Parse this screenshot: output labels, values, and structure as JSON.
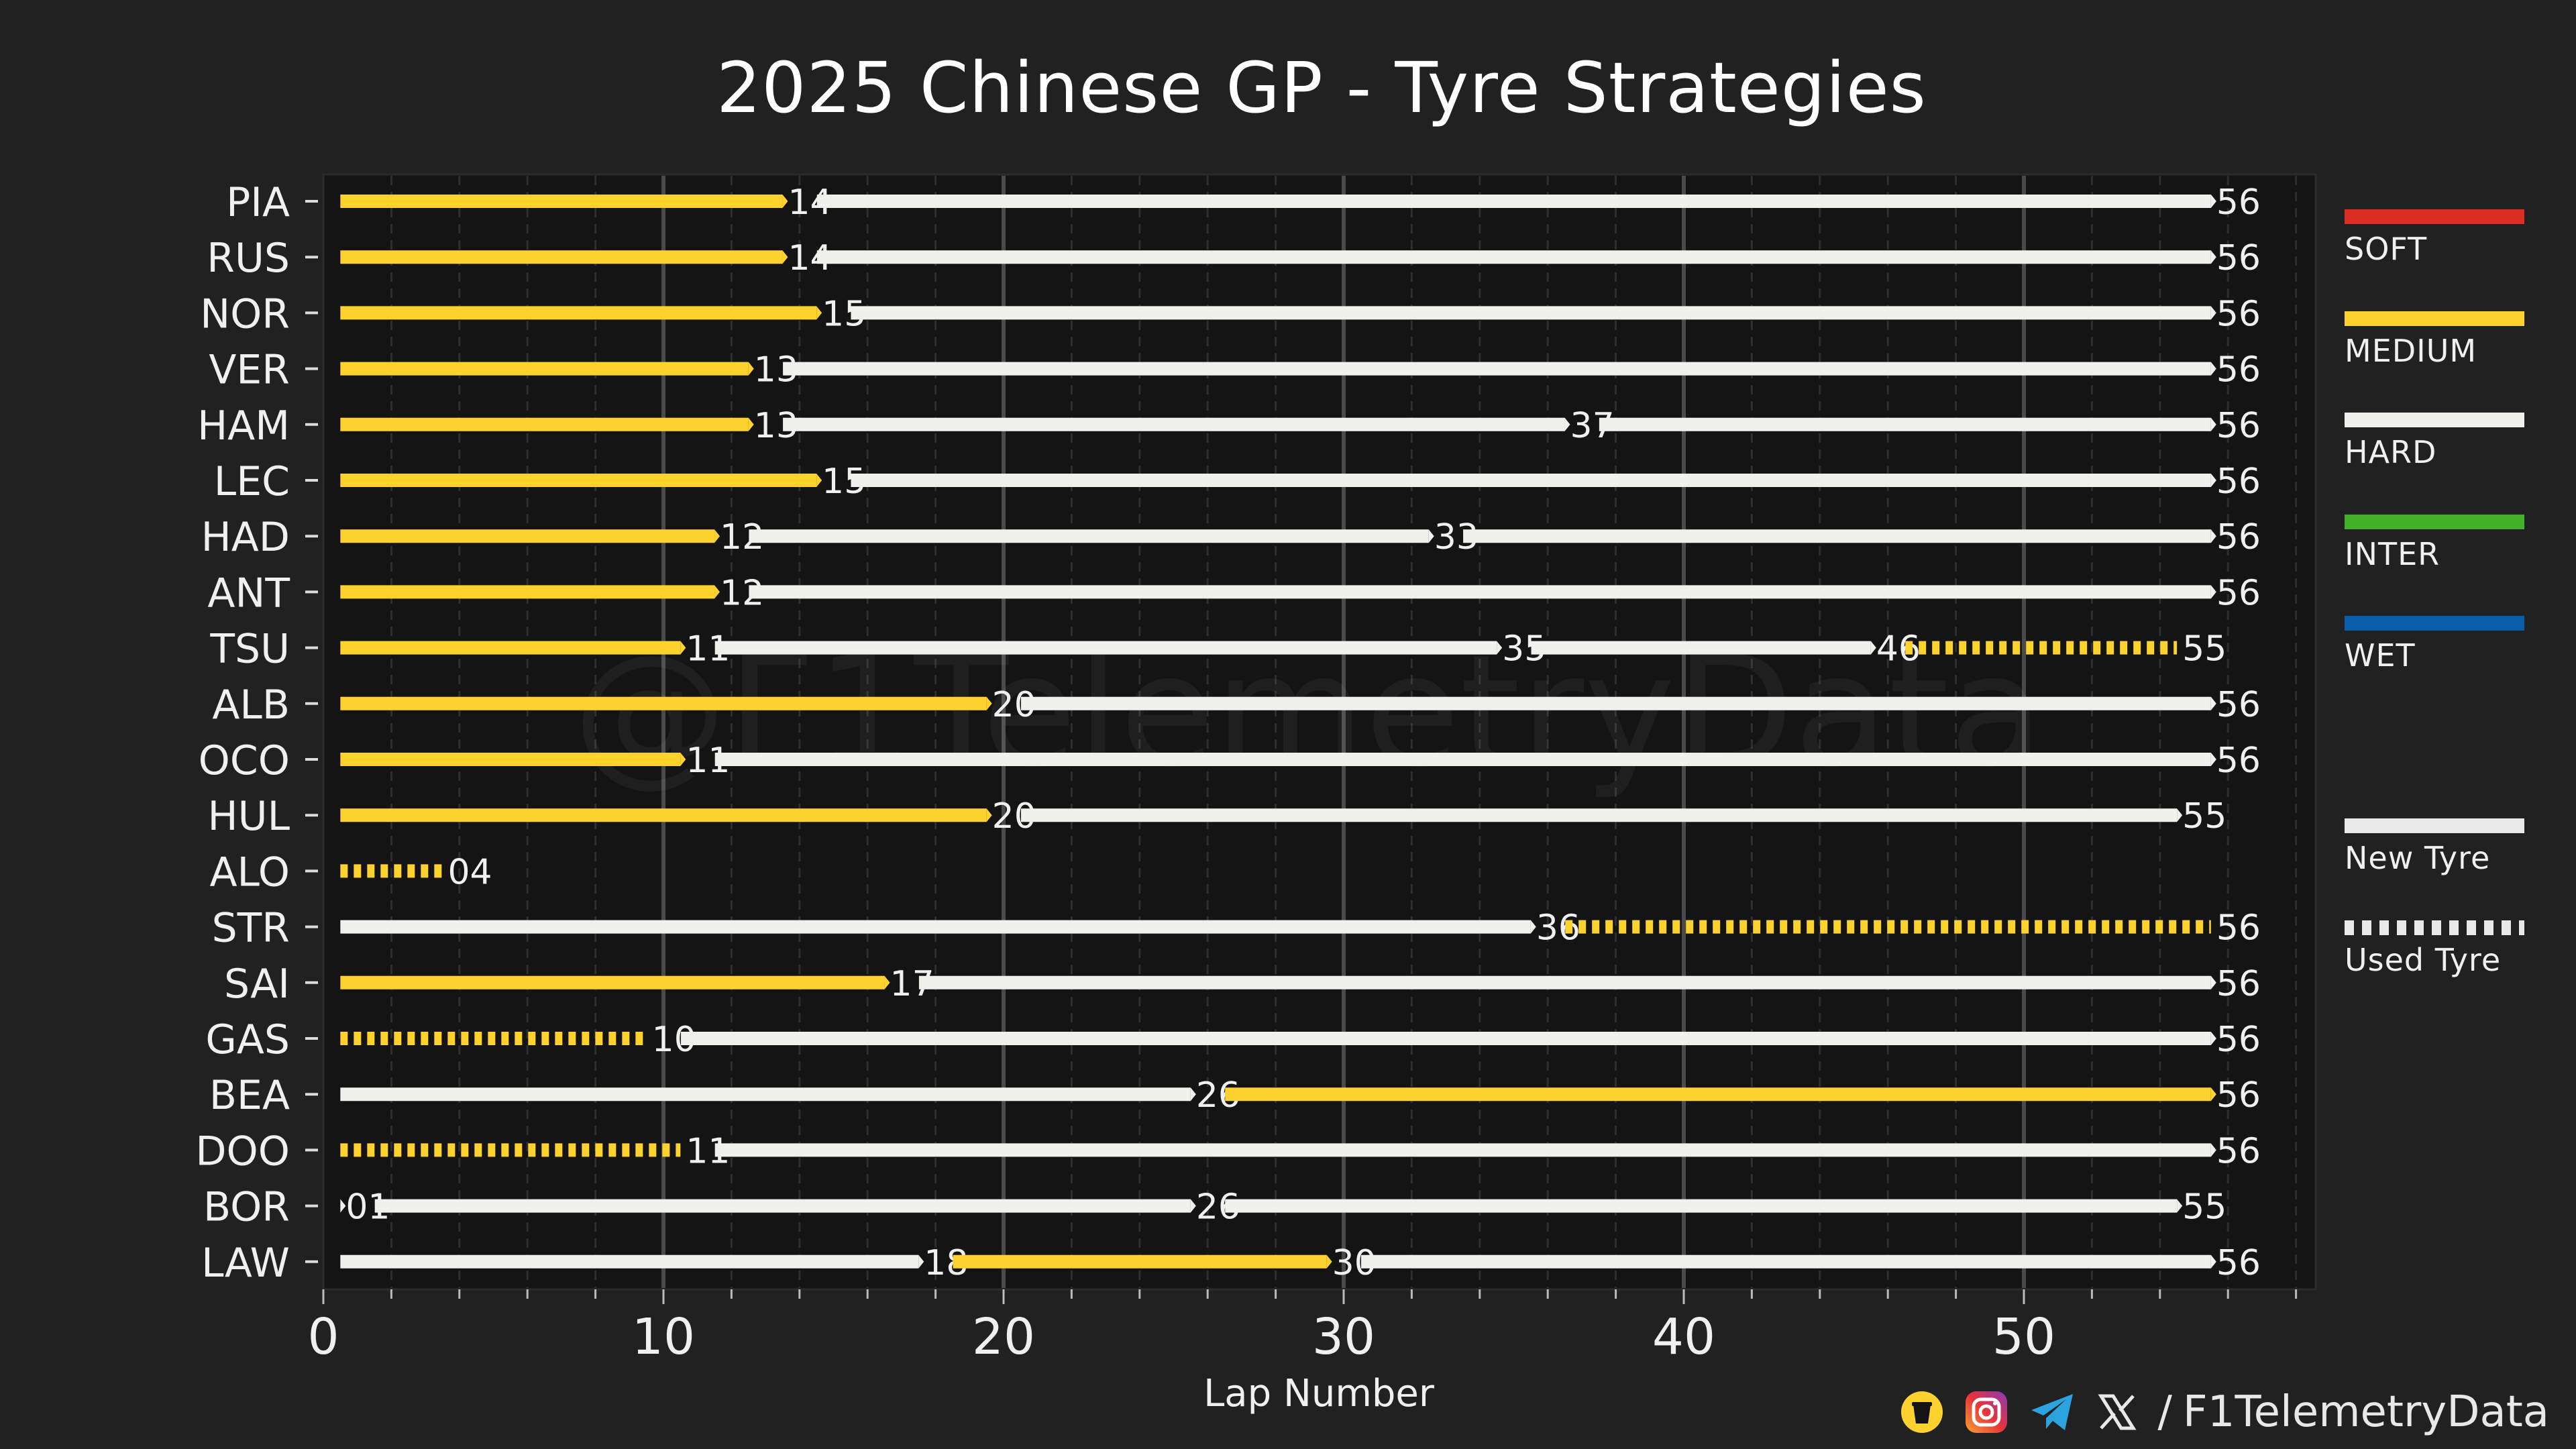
{
  "chart_data": {
    "type": "timeline",
    "title": "2025 Chinese GP - Tyre Strategies",
    "xlabel": "Lap Number",
    "xlim": [
      0,
      58.5
    ],
    "xticks": [
      0,
      10,
      20,
      30,
      40,
      50
    ],
    "watermark": "@F1TelemetryData",
    "compound_colors": {
      "SOFT": "#dc2e22",
      "MEDIUM": "#fdd12e",
      "HARD": "#f0f0ec",
      "INTER": "#43b02a",
      "WET": "#0a5da8"
    },
    "drivers": [
      {
        "driver": "PIA",
        "stints": [
          {
            "compound": "MEDIUM",
            "start": 0,
            "end": 14,
            "used": false,
            "label": "14"
          },
          {
            "compound": "HARD",
            "start": 14,
            "end": 56,
            "used": false,
            "label": "56"
          }
        ]
      },
      {
        "driver": "RUS",
        "stints": [
          {
            "compound": "MEDIUM",
            "start": 0,
            "end": 14,
            "used": false,
            "label": "14"
          },
          {
            "compound": "HARD",
            "start": 14,
            "end": 56,
            "used": false,
            "label": "56"
          }
        ]
      },
      {
        "driver": "NOR",
        "stints": [
          {
            "compound": "MEDIUM",
            "start": 0,
            "end": 15,
            "used": false,
            "label": "15"
          },
          {
            "compound": "HARD",
            "start": 15,
            "end": 56,
            "used": false,
            "label": "56"
          }
        ]
      },
      {
        "driver": "VER",
        "stints": [
          {
            "compound": "MEDIUM",
            "start": 0,
            "end": 13,
            "used": false,
            "label": "13"
          },
          {
            "compound": "HARD",
            "start": 13,
            "end": 56,
            "used": false,
            "label": "56"
          }
        ]
      },
      {
        "driver": "HAM",
        "stints": [
          {
            "compound": "MEDIUM",
            "start": 0,
            "end": 13,
            "used": false,
            "label": "13"
          },
          {
            "compound": "HARD",
            "start": 13,
            "end": 37,
            "used": false,
            "label": "37"
          },
          {
            "compound": "HARD",
            "start": 37,
            "end": 56,
            "used": false,
            "label": "56"
          }
        ]
      },
      {
        "driver": "LEC",
        "stints": [
          {
            "compound": "MEDIUM",
            "start": 0,
            "end": 15,
            "used": false,
            "label": "15"
          },
          {
            "compound": "HARD",
            "start": 15,
            "end": 56,
            "used": false,
            "label": "56"
          }
        ]
      },
      {
        "driver": "HAD",
        "stints": [
          {
            "compound": "MEDIUM",
            "start": 0,
            "end": 12,
            "used": false,
            "label": "12"
          },
          {
            "compound": "HARD",
            "start": 12,
            "end": 33,
            "used": false,
            "label": "33"
          },
          {
            "compound": "HARD",
            "start": 33,
            "end": 56,
            "used": false,
            "label": "56"
          }
        ]
      },
      {
        "driver": "ANT",
        "stints": [
          {
            "compound": "MEDIUM",
            "start": 0,
            "end": 12,
            "used": false,
            "label": "12"
          },
          {
            "compound": "HARD",
            "start": 12,
            "end": 56,
            "used": false,
            "label": "56"
          }
        ]
      },
      {
        "driver": "TSU",
        "stints": [
          {
            "compound": "MEDIUM",
            "start": 0,
            "end": 11,
            "used": false,
            "label": "11"
          },
          {
            "compound": "HARD",
            "start": 11,
            "end": 35,
            "used": false,
            "label": "35"
          },
          {
            "compound": "HARD",
            "start": 35,
            "end": 46,
            "used": false,
            "label": "46"
          },
          {
            "compound": "MEDIUM",
            "start": 46,
            "end": 55,
            "used": true,
            "label": "55"
          }
        ]
      },
      {
        "driver": "ALB",
        "stints": [
          {
            "compound": "MEDIUM",
            "start": 0,
            "end": 20,
            "used": false,
            "label": "20"
          },
          {
            "compound": "HARD",
            "start": 20,
            "end": 56,
            "used": false,
            "label": "56"
          }
        ]
      },
      {
        "driver": "OCO",
        "stints": [
          {
            "compound": "MEDIUM",
            "start": 0,
            "end": 11,
            "used": false,
            "label": "11"
          },
          {
            "compound": "HARD",
            "start": 11,
            "end": 56,
            "used": false,
            "label": "56"
          }
        ]
      },
      {
        "driver": "HUL",
        "stints": [
          {
            "compound": "MEDIUM",
            "start": 0,
            "end": 20,
            "used": false,
            "label": "20"
          },
          {
            "compound": "HARD",
            "start": 20,
            "end": 55,
            "used": false,
            "label": "55"
          }
        ]
      },
      {
        "driver": "ALO",
        "stints": [
          {
            "compound": "MEDIUM",
            "start": 0,
            "end": 4,
            "used": true,
            "label": "04"
          }
        ]
      },
      {
        "driver": "STR",
        "stints": [
          {
            "compound": "HARD",
            "start": 0,
            "end": 36,
            "used": false,
            "label": "36"
          },
          {
            "compound": "MEDIUM",
            "start": 36,
            "end": 56,
            "used": true,
            "label": "56"
          }
        ]
      },
      {
        "driver": "SAI",
        "stints": [
          {
            "compound": "MEDIUM",
            "start": 0,
            "end": 17,
            "used": false,
            "label": "17"
          },
          {
            "compound": "HARD",
            "start": 17,
            "end": 56,
            "used": false,
            "label": "56"
          }
        ]
      },
      {
        "driver": "GAS",
        "stints": [
          {
            "compound": "MEDIUM",
            "start": 0,
            "end": 10,
            "used": true,
            "label": "10"
          },
          {
            "compound": "HARD",
            "start": 10,
            "end": 56,
            "used": false,
            "label": "56"
          }
        ]
      },
      {
        "driver": "BEA",
        "stints": [
          {
            "compound": "HARD",
            "start": 0,
            "end": 26,
            "used": false,
            "label": "26"
          },
          {
            "compound": "MEDIUM",
            "start": 26,
            "end": 56,
            "used": false,
            "label": "56"
          }
        ]
      },
      {
        "driver": "DOO",
        "stints": [
          {
            "compound": "MEDIUM",
            "start": 0,
            "end": 11,
            "used": true,
            "label": "11"
          },
          {
            "compound": "HARD",
            "start": 11,
            "end": 56,
            "used": false,
            "label": "56"
          }
        ]
      },
      {
        "driver": "BOR",
        "stints": [
          {
            "compound": "HARD",
            "start": 0,
            "end": 1,
            "used": false,
            "label": "01"
          },
          {
            "compound": "HARD",
            "start": 1,
            "end": 26,
            "used": false,
            "label": "26"
          },
          {
            "compound": "HARD",
            "start": 26,
            "end": 55,
            "used": false,
            "label": "55"
          }
        ]
      },
      {
        "driver": "LAW",
        "stints": [
          {
            "compound": "HARD",
            "start": 0,
            "end": 18,
            "used": false,
            "label": "18"
          },
          {
            "compound": "MEDIUM",
            "start": 18,
            "end": 30,
            "used": false,
            "label": "30"
          },
          {
            "compound": "HARD",
            "start": 30,
            "end": 56,
            "used": false,
            "label": "56"
          }
        ]
      }
    ]
  },
  "legend": {
    "compounds": [
      "SOFT",
      "MEDIUM",
      "HARD",
      "INTER",
      "WET"
    ],
    "new_tyre": "New Tyre",
    "used_tyre": "Used Tyre"
  },
  "footer": {
    "separator": "/",
    "handle": "F1TelemetryData",
    "icons": [
      "buymeacoffee-icon",
      "instagram-icon",
      "telegram-icon",
      "x-icon"
    ]
  }
}
